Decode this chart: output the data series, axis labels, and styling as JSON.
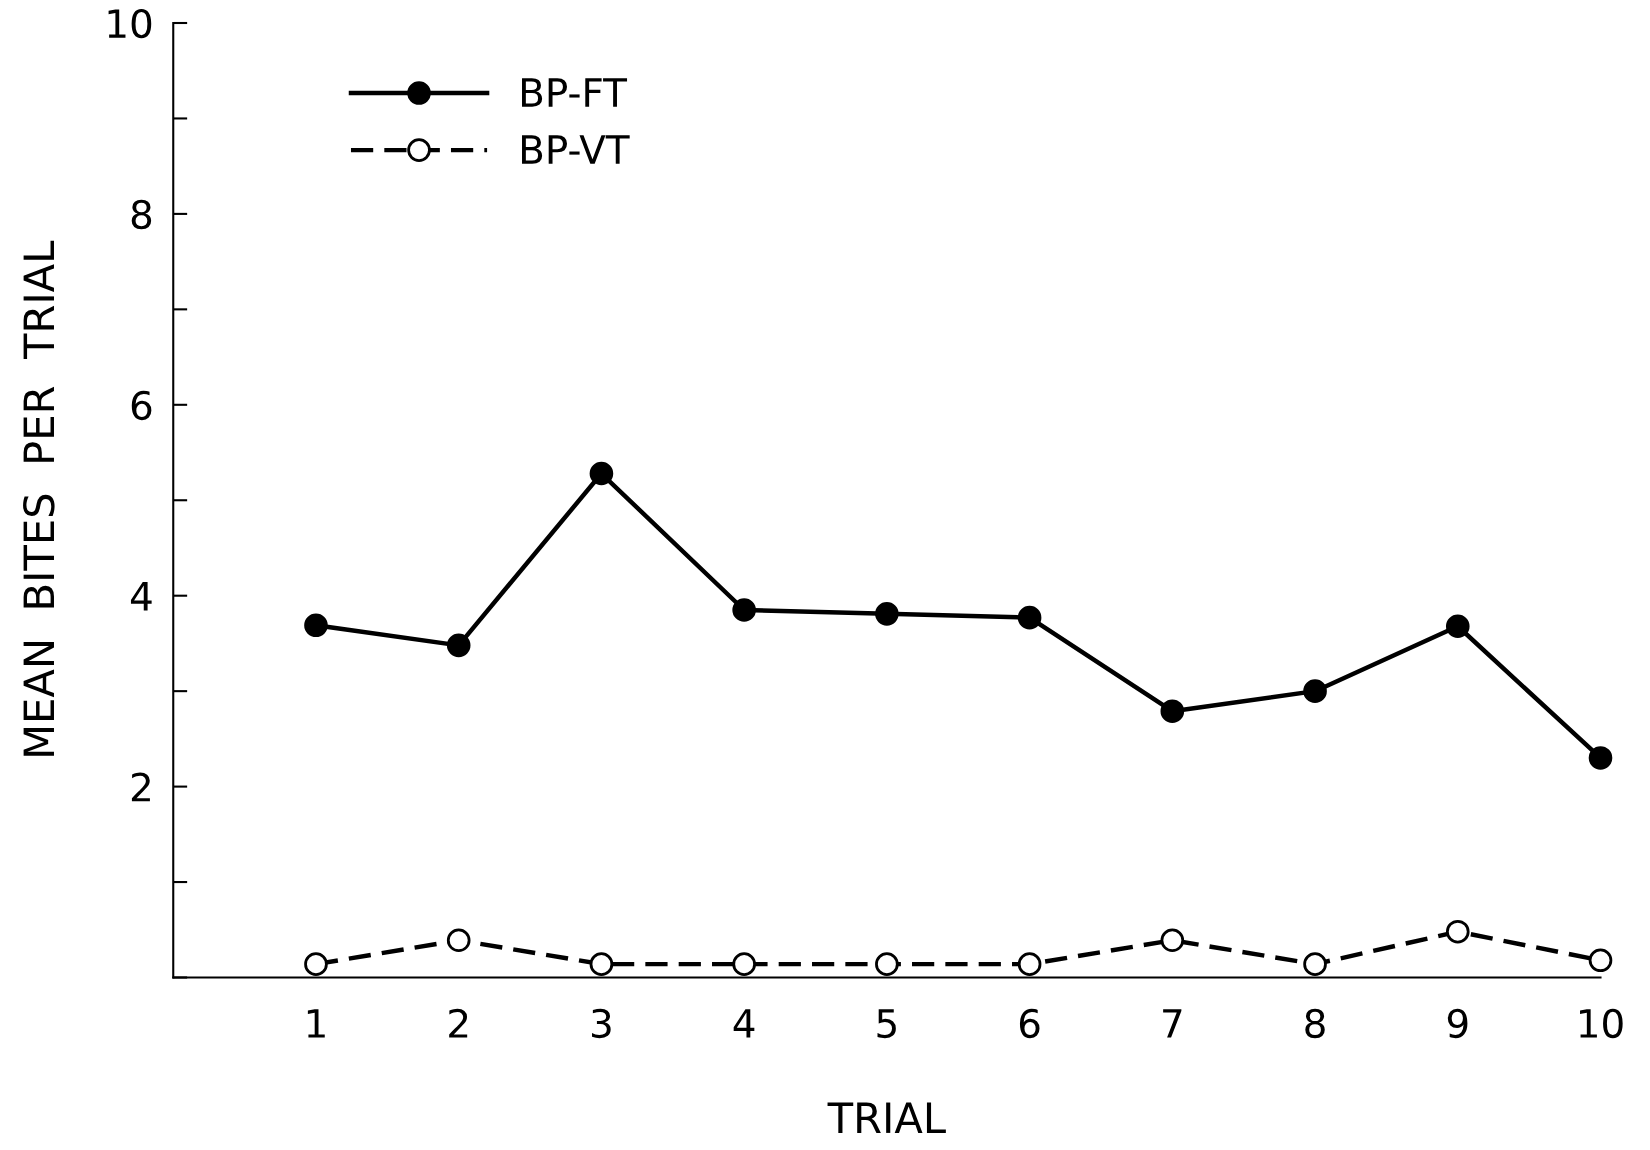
{
  "chart_data": {
    "type": "line",
    "xlabel": "TRIAL",
    "ylabel": "MEAN  BITES  PER  TRIAL",
    "x": [
      1,
      2,
      3,
      4,
      5,
      6,
      7,
      8,
      9,
      10
    ],
    "series": [
      {
        "name": "BP-FT",
        "color": "#000000",
        "line_style": "solid",
        "values": [
          3.69,
          3.48,
          5.28,
          3.85,
          3.81,
          3.77,
          2.79,
          3.0,
          3.68,
          2.3
        ]
      },
      {
        "name": "BP-VT",
        "color": "#000000",
        "line_style": "dashed",
        "values": [
          0.14,
          0.39,
          0.14,
          0.14,
          0.14,
          0.14,
          0.39,
          0.14,
          0.48,
          0.18
        ]
      }
    ],
    "marker": "circle",
    "xlim": [
      0,
      10
    ],
    "xticks": [
      1,
      2,
      3,
      4,
      5,
      6,
      7,
      8,
      9,
      10
    ],
    "ylim": [
      0,
      10
    ],
    "yticks": [
      {
        "value": 0,
        "label": null
      },
      {
        "value": 1,
        "label": null
      },
      2,
      {
        "value": 3,
        "label": null
      },
      4,
      {
        "value": 5,
        "label": null
      },
      6,
      {
        "value": 7,
        "label": null
      },
      8,
      {
        "value": 9,
        "label": null
      },
      10
    ],
    "grid": false,
    "legend": "top left"
  }
}
